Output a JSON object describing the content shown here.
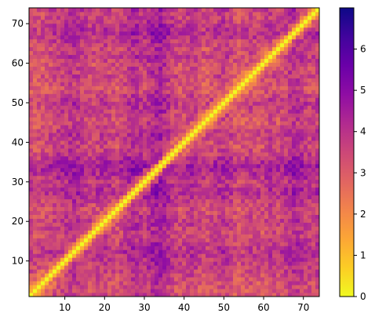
{
  "chart_data": {
    "type": "heatmap",
    "title": "",
    "xlabel": "",
    "ylabel": "",
    "n": 74,
    "xlim": [
      1,
      74
    ],
    "ylim": [
      1,
      74
    ],
    "x_ticks": [
      10,
      20,
      30,
      40,
      50,
      60,
      70
    ],
    "y_ticks": [
      10,
      20,
      30,
      40,
      50,
      60,
      70
    ],
    "x_tick_labels": [
      "10",
      "20",
      "30",
      "40",
      "50",
      "60",
      "70"
    ],
    "y_tick_labels": [
      "10",
      "20",
      "30",
      "40",
      "50",
      "60",
      "70"
    ],
    "colormap": "plasma_r",
    "symmetric": true,
    "diagonal_value": 0,
    "value_range": [
      0,
      7
    ],
    "colorbar": {
      "ticks": [
        0,
        1,
        2,
        3,
        4,
        5,
        6
      ],
      "tick_labels": [
        "0",
        "1",
        "2",
        "3",
        "4",
        "5",
        "6"
      ],
      "placement": "right"
    },
    "row_profile": {
      "description_values_estimated": true,
      "row_mean_levels": [
        3.2,
        2.9,
        2.8,
        3.0,
        3.3,
        3.4,
        3.6,
        3.8,
        3.9,
        4.1,
        4.3,
        4.4,
        4.2,
        3.9,
        3.6,
        3.4,
        3.3,
        3.5,
        3.7,
        3.8,
        3.6,
        3.4,
        3.2,
        3.5,
        3.9,
        4.3,
        4.6,
        4.5,
        4.2,
        4.0,
        4.5,
        4.9,
        5.2,
        5.3,
        4.9,
        4.4,
        3.9,
        3.5,
        3.3,
        3.4,
        3.7,
        3.9,
        3.6,
        3.2,
        3.0,
        3.1,
        3.3,
        3.5,
        3.8,
        4.0,
        3.8,
        3.4,
        3.0,
        2.8,
        2.9,
        3.2,
        3.4,
        3.3,
        3.1,
        3.2,
        3.5,
        3.8,
        3.6,
        3.3,
        3.5,
        3.9,
        4.3,
        4.6,
        4.4,
        4.1,
        3.8,
        3.6,
        3.7,
        3.9
      ]
    }
  }
}
